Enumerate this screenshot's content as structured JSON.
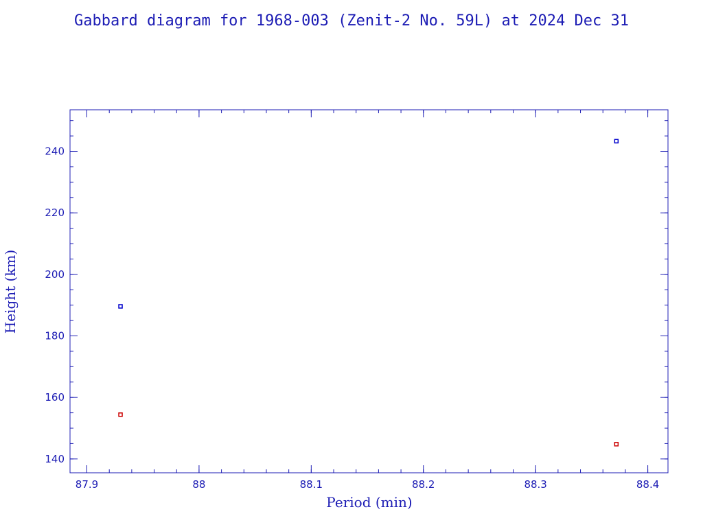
{
  "chart_data": {
    "type": "scatter",
    "title": "Gabbard diagram for 1968-003 (Zenit-2 No. 59L) at 2024 Dec 31",
    "xlabel": "Period (min)",
    "ylabel": "Height (km)",
    "xlim": [
      87.885,
      88.418
    ],
    "ylim": [
      135.5,
      253.5
    ],
    "x_ticks": [
      {
        "value": 87.9,
        "label": "87.9"
      },
      {
        "value": 88.0,
        "label": "88"
      },
      {
        "value": 88.1,
        "label": "88.1"
      },
      {
        "value": 88.2,
        "label": "88.2"
      },
      {
        "value": 88.3,
        "label": "88.3"
      },
      {
        "value": 88.4,
        "label": "88.4"
      }
    ],
    "x_minor_step": 0.02,
    "y_ticks": [
      {
        "value": 140,
        "label": "140"
      },
      {
        "value": 160,
        "label": "160"
      },
      {
        "value": 180,
        "label": "180"
      },
      {
        "value": 200,
        "label": "200"
      },
      {
        "value": 220,
        "label": "220"
      },
      {
        "value": 240,
        "label": "240"
      }
    ],
    "y_minor_step": 5,
    "series": [
      {
        "color": "#0000cc",
        "points": [
          {
            "x": 87.93,
            "y": 189.6
          },
          {
            "x": 88.372,
            "y": 243.3
          }
        ]
      },
      {
        "color": "#cc0000",
        "points": [
          {
            "x": 87.93,
            "y": 154.4
          },
          {
            "x": 88.372,
            "y": 144.8
          }
        ]
      }
    ],
    "axis_color": "#1c1cb4",
    "grid": false,
    "legend": "none"
  }
}
